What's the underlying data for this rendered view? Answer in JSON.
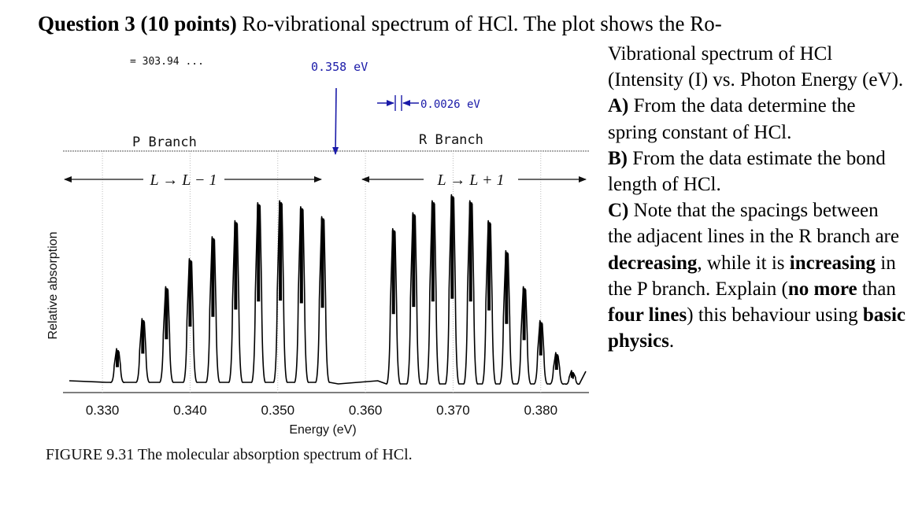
{
  "question": {
    "heading_bold": "Question 3 (10 points)",
    "heading_rest": "Ro-vibrational spectrum of HCl. The plot shows the Ro-",
    "intro": "Vibrational spectrum of HCl (Intensity (I) vs. Photon Energy (eV).",
    "part_a_label": "A)",
    "part_a_text": "From the data determine the spring constant of HCl.",
    "part_b_label": "B)",
    "part_b_text": "From the data estimate the bond length of HCl.",
    "part_c_label": "C)",
    "part_c_text1": "Note that the spacings between the adjacent lines in the R branch are",
    "part_c_bold1": "decreasing",
    "part_c_text2": ", while it is",
    "part_c_bold2": "increasing",
    "part_c_text3": "in the P branch. Explain (",
    "part_c_bold3": "no more",
    "part_c_text4": "than",
    "part_c_bold4": "four lines",
    "part_c_text5": ") this behaviour using",
    "part_c_bold5": "basic physics",
    "part_c_text6": "."
  },
  "annotations": {
    "center_energy": "0.358 eV",
    "spacing": "0.0026 eV",
    "p_branch": "P Branch",
    "r_branch": "R Branch",
    "cut_off_text": "= 303.94 ...",
    "p_transition": "L → L − 1",
    "r_transition": "L → L + 1"
  },
  "figure_caption": "FIGURE 9.31   The molecular absorption spectrum of HCl.",
  "chart_data": {
    "type": "line",
    "title": "",
    "xlabel": "Energy (eV)",
    "ylabel": "Relative absorption",
    "xlim": [
      0.3255,
      0.3855
    ],
    "xticks": [
      0.33,
      0.34,
      0.35,
      0.36,
      0.37,
      0.38
    ],
    "xtick_labels": [
      "0.330",
      "0.340",
      "0.350",
      "0.360",
      "0.370",
      "0.380"
    ],
    "grid": true,
    "baseline": 0.05,
    "series": [
      {
        "x": [
          0.3317,
          0.3346,
          0.3373,
          0.34,
          0.3426,
          0.3452,
          0.3478,
          0.3503,
          0.3527,
          0.3551,
          0.3632,
          0.3655,
          0.3677,
          0.3699,
          0.372,
          0.3741,
          0.3761,
          0.3781,
          0.38,
          0.3818,
          0.3836
        ],
        "y": [
          0.22,
          0.37,
          0.53,
          0.67,
          0.78,
          0.86,
          0.95,
          0.96,
          0.93,
          0.88,
          0.82,
          0.9,
          0.96,
          0.99,
          0.96,
          0.86,
          0.71,
          0.53,
          0.36,
          0.2,
          0.11
        ]
      }
    ]
  }
}
